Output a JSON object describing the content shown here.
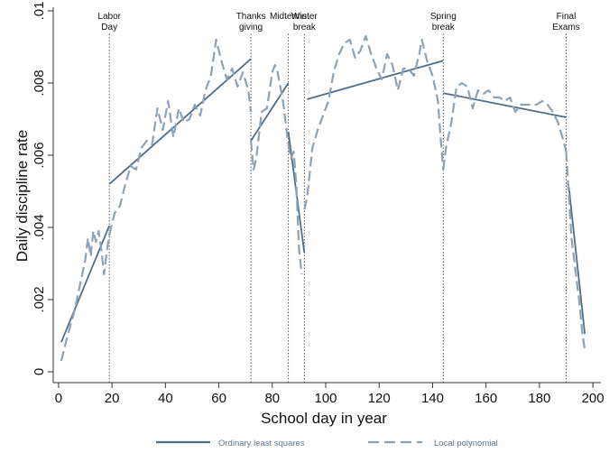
{
  "chart_data": {
    "type": "line",
    "title": "",
    "xlabel": "School day in year",
    "ylabel": "Daily discipline rate",
    "xlim": [
      -2,
      203
    ],
    "ylim": [
      -0.0003,
      0.0101
    ],
    "xticks": [
      0,
      20,
      40,
      60,
      80,
      100,
      120,
      140,
      160,
      180,
      200
    ],
    "yticks": [
      0,
      0.002,
      0.004,
      0.006,
      0.008,
      0.01
    ],
    "ytick_labels": [
      "0",
      ".002",
      ".004",
      ".006",
      ".008",
      ".01"
    ],
    "grid": false,
    "legend_position": "bottom",
    "colors": {
      "ols": "#4e6f8a",
      "poly": "#8ba2b7",
      "axis": "#333333",
      "event": "#555555"
    },
    "events": [
      {
        "x": 19,
        "lines": [
          "Labor",
          "Day"
        ],
        "style": "dotted"
      },
      {
        "x": 72,
        "lines": [
          "Thanks",
          "giving"
        ],
        "style": "dotted"
      },
      {
        "x": 86,
        "lines": [
          "Midterms"
        ],
        "style": "dotted"
      },
      {
        "x": 92,
        "lines": [
          "Winter",
          "break"
        ],
        "style": "dotted"
      },
      {
        "x": 144,
        "lines": [
          "Spring",
          "break"
        ],
        "style": "dotted"
      },
      {
        "x": 190,
        "lines": [
          "Final",
          "Exams"
        ],
        "style": "dotted"
      }
    ],
    "series": [
      {
        "name": "Ordinary least squares",
        "style": "solid",
        "segments": [
          [
            [
              1,
              0.00082
            ],
            [
              19,
              0.00405
            ]
          ],
          [
            [
              19,
              0.0052
            ],
            [
              72,
              0.00867
            ]
          ],
          [
            [
              72,
              0.0064
            ],
            [
              86,
              0.008
            ]
          ],
          [
            [
              86,
              0.00665
            ],
            [
              92,
              0.0033
            ]
          ],
          [
            [
              93,
              0.00755
            ],
            [
              144,
              0.00862
            ]
          ],
          [
            [
              144,
              0.00772
            ],
            [
              190,
              0.00705
            ]
          ],
          [
            [
              191,
              0.00512
            ],
            [
              197,
              0.00105
            ]
          ]
        ]
      },
      {
        "name": "Local polynomial",
        "style": "dashed",
        "segments": [
          [
            [
              1,
              0.0003
            ],
            [
              3,
              0.0009
            ],
            [
              6,
              0.0017
            ],
            [
              8,
              0.0024
            ],
            [
              10,
              0.0031
            ],
            [
              11,
              0.0037
            ],
            [
              12,
              0.0032
            ],
            [
              13,
              0.0039
            ],
            [
              14,
              0.0036
            ],
            [
              15,
              0.0039
            ],
            [
              16,
              0.0034
            ],
            [
              17,
              0.0027
            ],
            [
              18,
              0.0033
            ],
            [
              19,
              0.0038
            ]
          ],
          [
            [
              19,
              0.0038
            ],
            [
              21,
              0.0044
            ],
            [
              23,
              0.0046
            ],
            [
              25,
              0.0052
            ],
            [
              27,
              0.0057
            ],
            [
              29,
              0.0056
            ],
            [
              31,
              0.0062
            ],
            [
              33,
              0.0064
            ],
            [
              35,
              0.0063
            ],
            [
              37,
              0.0073
            ],
            [
              39,
              0.0067
            ],
            [
              41,
              0.0075
            ],
            [
              43,
              0.0065
            ],
            [
              45,
              0.0073
            ],
            [
              47,
              0.0069
            ],
            [
              49,
              0.007
            ],
            [
              51,
              0.0074
            ],
            [
              53,
              0.0071
            ],
            [
              55,
              0.0078
            ],
            [
              57,
              0.0082
            ],
            [
              59,
              0.0092
            ],
            [
              61,
              0.0086
            ],
            [
              63,
              0.0081
            ],
            [
              65,
              0.0084
            ],
            [
              67,
              0.0079
            ],
            [
              69,
              0.0083
            ],
            [
              71,
              0.0078
            ],
            [
              72,
              0.0072
            ]
          ],
          [
            [
              72,
              0.0064
            ],
            [
              73,
              0.0056
            ],
            [
              74,
              0.0059
            ],
            [
              76,
              0.0072
            ],
            [
              78,
              0.0073
            ],
            [
              80,
              0.0083
            ],
            [
              81,
              0.0085
            ],
            [
              82,
              0.0083
            ],
            [
              84,
              0.0075
            ],
            [
              86,
              0.0063
            ]
          ],
          [
            [
              86,
              0.0063
            ],
            [
              87,
              0.0059
            ],
            [
              88,
              0.0061
            ],
            [
              89,
              0.0052
            ],
            [
              90,
              0.0034
            ],
            [
              91,
              0.0027
            ]
          ],
          [
            [
              92,
              0.0045
            ],
            [
              93,
              0.0048
            ],
            [
              95,
              0.0062
            ],
            [
              97,
              0.0067
            ],
            [
              99,
              0.0071
            ],
            [
              101,
              0.0075
            ],
            [
              103,
              0.0083
            ],
            [
              105,
              0.0088
            ],
            [
              107,
              0.0091
            ],
            [
              109,
              0.0092
            ],
            [
              111,
              0.0087
            ],
            [
              113,
              0.0089
            ],
            [
              115,
              0.0093
            ],
            [
              117,
              0.0088
            ],
            [
              119,
              0.0084
            ],
            [
              121,
              0.0081
            ],
            [
              123,
              0.0088
            ],
            [
              125,
              0.0085
            ],
            [
              127,
              0.0078
            ],
            [
              129,
              0.0084
            ],
            [
              131,
              0.0084
            ],
            [
              133,
              0.0082
            ],
            [
              135,
              0.0088
            ],
            [
              136,
              0.0092
            ],
            [
              138,
              0.0086
            ],
            [
              140,
              0.0082
            ],
            [
              142,
              0.0075
            ],
            [
              143,
              0.0065
            ],
            [
              144,
              0.0056
            ]
          ],
          [
            [
              144,
              0.0056
            ],
            [
              145,
              0.0062
            ],
            [
              147,
              0.0069
            ],
            [
              149,
              0.0079
            ],
            [
              151,
              0.008
            ],
            [
              153,
              0.0079
            ],
            [
              155,
              0.0073
            ],
            [
              157,
              0.0078
            ],
            [
              159,
              0.0077
            ],
            [
              161,
              0.0078
            ],
            [
              163,
              0.0076
            ],
            [
              165,
              0.0076
            ],
            [
              167,
              0.0075
            ],
            [
              169,
              0.0076
            ],
            [
              171,
              0.0072
            ],
            [
              173,
              0.0074
            ],
            [
              175,
              0.0074
            ],
            [
              177,
              0.0074
            ],
            [
              179,
              0.0074
            ],
            [
              181,
              0.0075
            ],
            [
              183,
              0.0074
            ],
            [
              185,
              0.0072
            ],
            [
              187,
              0.0069
            ],
            [
              189,
              0.0064
            ],
            [
              190,
              0.0061
            ]
          ],
          [
            [
              190,
              0.0061
            ],
            [
              191,
              0.0049
            ],
            [
              192,
              0.0037
            ],
            [
              193,
              0.0031
            ],
            [
              194,
              0.0025
            ],
            [
              195,
              0.0019
            ],
            [
              196,
              0.0011
            ],
            [
              197,
              0.0006
            ]
          ]
        ]
      }
    ]
  }
}
